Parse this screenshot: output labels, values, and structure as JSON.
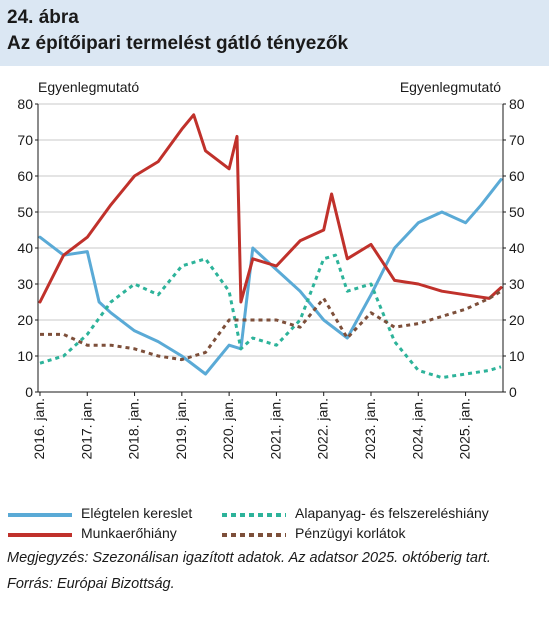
{
  "figure": {
    "number": "24. ábra",
    "title": "Az építőipari termelést gátló tényezők"
  },
  "chart_data": {
    "type": "line",
    "title": "Az építőipari termelést gátló tényezők",
    "ylabel_left": "Egyenlegmutató",
    "ylabel_right": "Egyenlegmutató",
    "ylim": [
      0,
      80
    ],
    "yticks": [
      0,
      10,
      20,
      30,
      40,
      50,
      60,
      70,
      80
    ],
    "x_start": "2016-01",
    "x_end": "2025-10",
    "xtick_labels": [
      "2016. jan.",
      "2017. jan.",
      "2018. jan.",
      "2019. jan.",
      "2020. jan.",
      "2021. jan.",
      "2022. jan.",
      "2023. jan.",
      "2024. jan.",
      "2025. jan."
    ],
    "grid": "horizontal",
    "legend_position": "bottom",
    "series": [
      {
        "name": "Elégtelen kereslet",
        "color": "#5aaad6",
        "style": "solid",
        "x": [
          "2016-01",
          "2016-07",
          "2017-01",
          "2017-04",
          "2017-07",
          "2018-01",
          "2018-07",
          "2019-01",
          "2019-07",
          "2020-01",
          "2020-04",
          "2020-07",
          "2021-01",
          "2021-07",
          "2022-01",
          "2022-07",
          "2023-01",
          "2023-07",
          "2024-01",
          "2024-07",
          "2025-01",
          "2025-05",
          "2025-10"
        ],
        "values": [
          43,
          38,
          39,
          25,
          22,
          17,
          14,
          10,
          5,
          13,
          12,
          40,
          34,
          28,
          20,
          15,
          27,
          40,
          47,
          50,
          47,
          52,
          59
        ]
      },
      {
        "name": "Alapanyag- és felszereléshiány",
        "color": "#2db39a",
        "style": "dashed",
        "x": [
          "2016-01",
          "2016-07",
          "2017-01",
          "2017-07",
          "2018-01",
          "2018-07",
          "2019-01",
          "2019-07",
          "2020-01",
          "2020-04",
          "2020-07",
          "2021-01",
          "2021-07",
          "2022-01",
          "2022-04",
          "2022-07",
          "2023-01",
          "2023-07",
          "2024-01",
          "2024-07",
          "2025-01",
          "2025-07",
          "2025-10"
        ],
        "values": [
          8,
          10,
          16,
          25,
          30,
          27,
          35,
          37,
          28,
          12,
          15,
          13,
          20,
          37,
          38,
          28,
          30,
          14,
          6,
          4,
          5,
          6,
          7
        ]
      },
      {
        "name": "Munkaerőhiány",
        "color": "#c0312b",
        "style": "solid",
        "x": [
          "2016-01",
          "2016-07",
          "2017-01",
          "2017-07",
          "2018-01",
          "2018-07",
          "2019-01",
          "2019-04",
          "2019-07",
          "2020-01",
          "2020-03",
          "2020-04",
          "2020-07",
          "2021-01",
          "2021-07",
          "2022-01",
          "2022-03",
          "2022-07",
          "2023-01",
          "2023-07",
          "2024-01",
          "2024-07",
          "2025-01",
          "2025-07",
          "2025-10"
        ],
        "values": [
          25,
          38,
          43,
          52,
          60,
          64,
          73,
          77,
          67,
          62,
          71,
          25,
          37,
          35,
          42,
          45,
          55,
          37,
          41,
          31,
          30,
          28,
          27,
          26,
          29
        ]
      },
      {
        "name": "Pénzügyi korlátok",
        "color": "#7d4f3a",
        "style": "dashed",
        "x": [
          "2016-01",
          "2016-07",
          "2017-01",
          "2017-07",
          "2018-01",
          "2018-07",
          "2019-01",
          "2019-07",
          "2020-01",
          "2020-07",
          "2021-01",
          "2021-07",
          "2022-01",
          "2022-07",
          "2023-01",
          "2023-07",
          "2024-01",
          "2024-07",
          "2025-01",
          "2025-07",
          "2025-10"
        ],
        "values": [
          16,
          16,
          13,
          13,
          12,
          10,
          9,
          11,
          20,
          20,
          20,
          18,
          26,
          15,
          22,
          18,
          19,
          21,
          23,
          26,
          28
        ]
      }
    ]
  },
  "legend": [
    {
      "label": "Elégtelen kereslet",
      "color": "#5aaad6",
      "style": "solid"
    },
    {
      "label": "Alapanyag- és felszereléshiány",
      "color": "#2db39a",
      "style": "dashed"
    },
    {
      "label": "Munkaerőhiány",
      "color": "#c0312b",
      "style": "solid"
    },
    {
      "label": "Pénzügyi korlátok",
      "color": "#7d4f3a",
      "style": "dashed"
    }
  ],
  "notes": {
    "megjegyzes": "Megjegyzés: Szezonálisan igazított adatok. Az adatsor 2025. októberig tart.",
    "forras": "Forrás: Európai Bizottság."
  }
}
